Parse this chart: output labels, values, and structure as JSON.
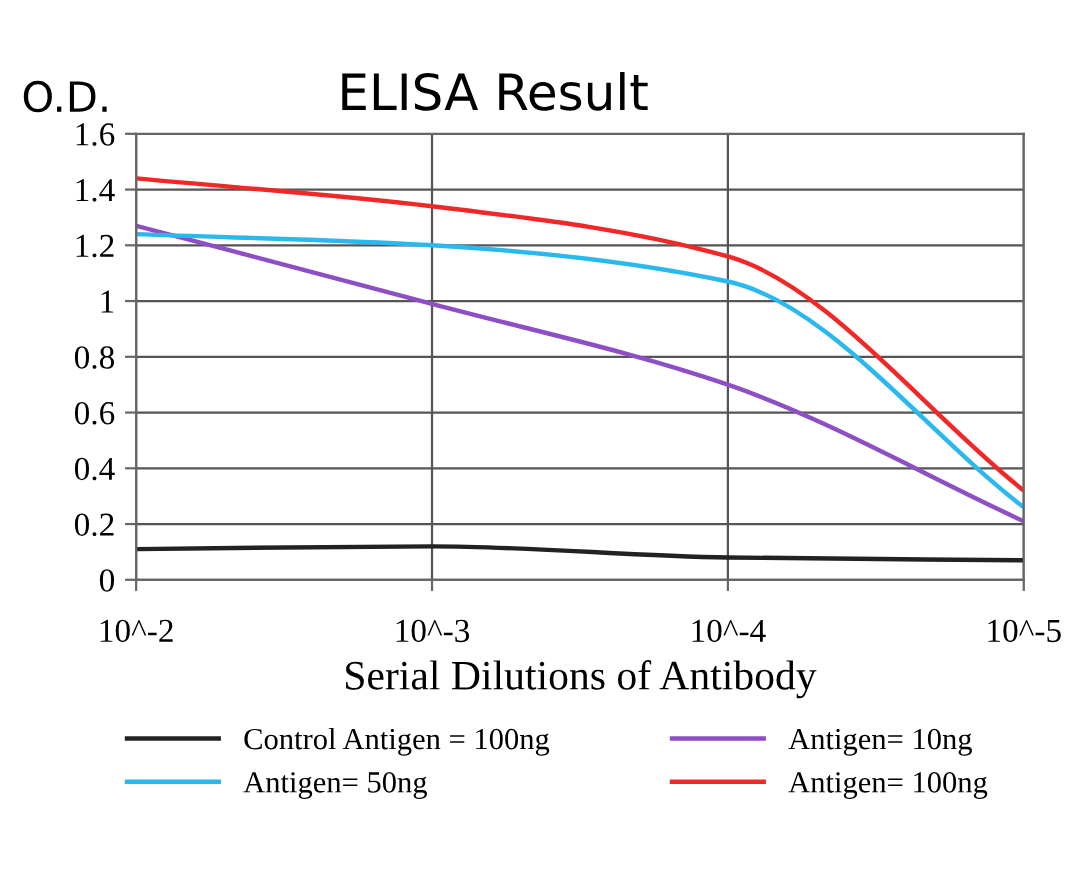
{
  "chart_data": {
    "type": "line",
    "title": "ELISA Result",
    "ylabel": "O.D.",
    "xlabel": "Serial Dilutions of Antibody",
    "categories": [
      "10^-2",
      "10^-3",
      "10^-4",
      "10^-5"
    ],
    "series": [
      {
        "name": "Control Antigen = 100ng",
        "color": "#222222",
        "values": [
          0.11,
          0.12,
          0.08,
          0.07
        ]
      },
      {
        "name": "Antigen= 10ng",
        "color": "#8e4fc4",
        "values": [
          1.27,
          0.99,
          0.7,
          0.21
        ]
      },
      {
        "name": "Antigen= 50ng",
        "color": "#2bb8ec",
        "values": [
          1.24,
          1.2,
          1.07,
          0.26
        ]
      },
      {
        "name": "Antigen= 100ng",
        "color": "#f02828",
        "values": [
          1.44,
          1.34,
          1.16,
          0.32
        ]
      }
    ],
    "ylim": [
      0,
      1.6
    ],
    "yticks": [
      0,
      0.2,
      0.4,
      0.6,
      0.8,
      1,
      1.2,
      1.4,
      1.6
    ],
    "grid": true,
    "legend": "bottom",
    "marker": "none",
    "line_style": "solid"
  }
}
